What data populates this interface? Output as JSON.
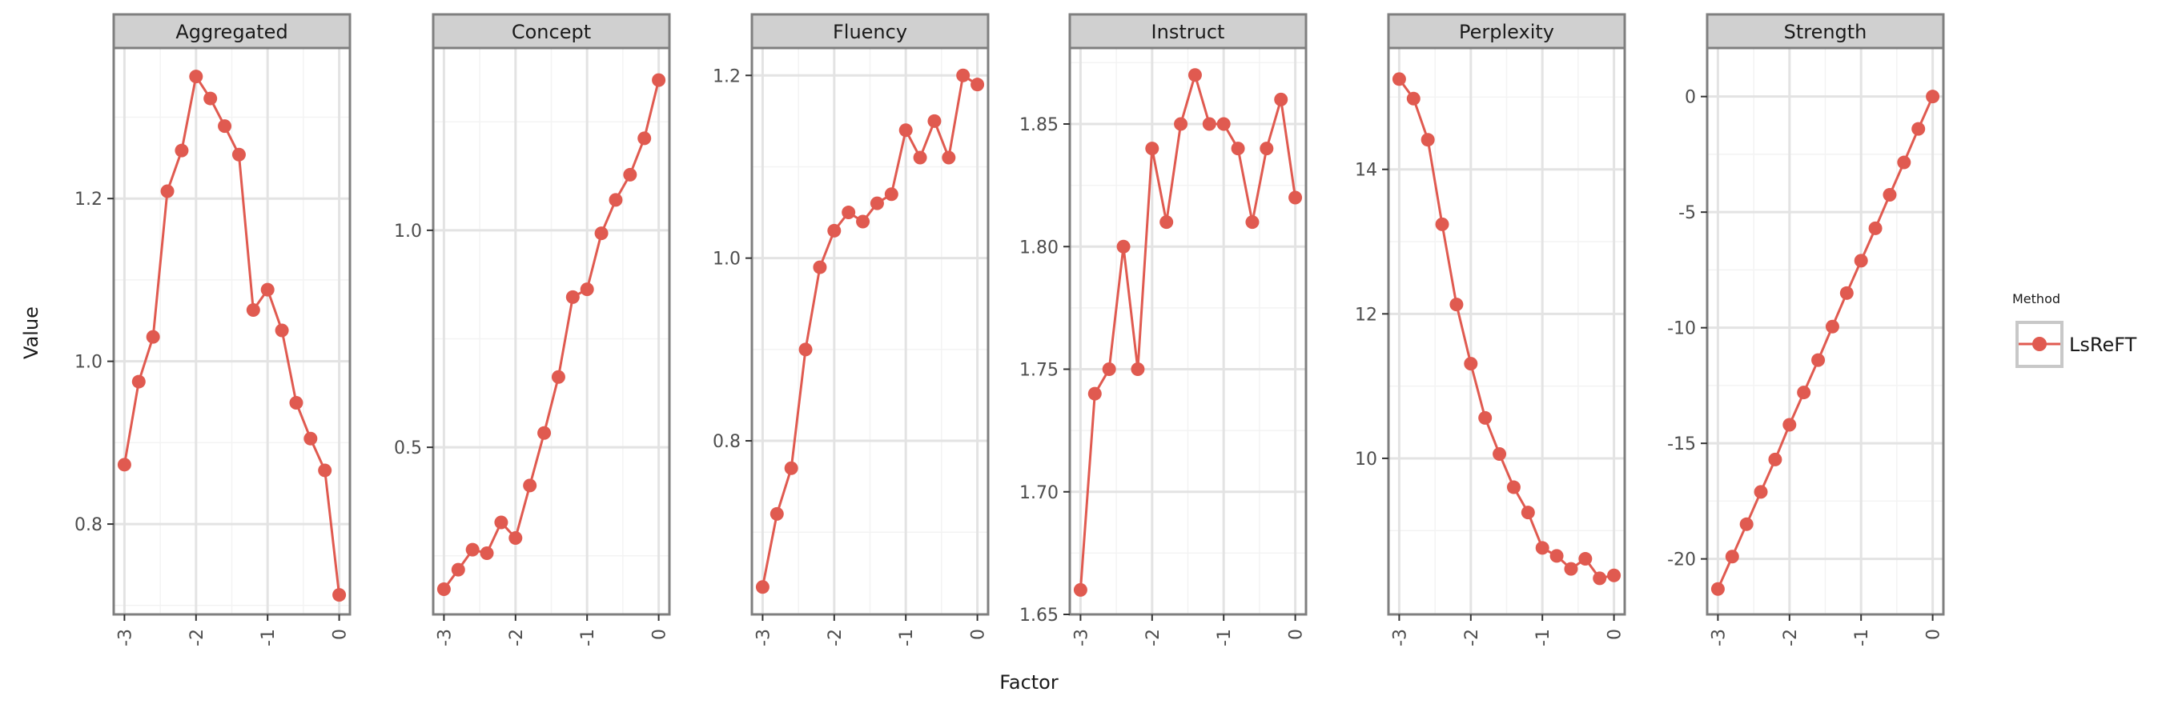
{
  "chart_data": {
    "type": "line",
    "xlabel": "Factor",
    "ylabel": "Value",
    "x_ticks": [
      -3,
      -2,
      -1,
      0
    ],
    "legend": {
      "title": "Method",
      "placement": "right",
      "entries": [
        {
          "label": "LsReFT",
          "color": "#E05A50"
        }
      ]
    },
    "grid": true,
    "colors": {
      "series": "#E05A50",
      "strip_fill": "#D0D0D0",
      "border": "#7F7F7F",
      "grid_major": "#E3E3E3",
      "grid_minor": "#F3F3F3"
    },
    "panels": [
      {
        "title": "Aggregated",
        "xlim": [
          -3.15,
          0.15
        ],
        "ylim": [
          0.689,
          1.385
        ],
        "y_ticks": [
          {
            "v": 0.8,
            "label": "0.8"
          },
          {
            "v": 1.0,
            "label": "1.0"
          },
          {
            "v": 1.2,
            "label": "1.2"
          }
        ],
        "series": [
          {
            "name": "LsReFT",
            "x": [
              -3.0,
              -2.8,
              -2.6,
              -2.4,
              -2.2,
              -2.0,
              -1.8,
              -1.6,
              -1.4,
              -1.2,
              -1.0,
              -0.8,
              -0.6,
              -0.4,
              -0.2,
              0.0
            ],
            "y": [
              0.873,
              0.975,
              1.03,
              1.209,
              1.259,
              1.35,
              1.323,
              1.289,
              1.254,
              1.063,
              1.088,
              1.038,
              0.949,
              0.905,
              0.866,
              0.713
            ]
          }
        ]
      },
      {
        "title": "Concept",
        "xlim": [
          -3.15,
          0.15
        ],
        "ylim": [
          0.115,
          1.42
        ],
        "y_ticks": [
          {
            "v": 0.5,
            "label": "0.5"
          },
          {
            "v": 1.0,
            "label": "1.0"
          }
        ],
        "series": [
          {
            "name": "LsReFT",
            "x": [
              -3.0,
              -2.8,
              -2.6,
              -2.4,
              -2.2,
              -2.0,
              -1.8,
              -1.6,
              -1.4,
              -1.2,
              -1.0,
              -0.8,
              -0.6,
              -0.4,
              -0.2,
              0.0
            ],
            "y": [
              0.173,
              0.218,
              0.264,
              0.256,
              0.327,
              0.291,
              0.412,
              0.533,
              0.662,
              0.846,
              0.864,
              0.993,
              1.07,
              1.128,
              1.212,
              1.346
            ]
          }
        ]
      },
      {
        "title": "Fluency",
        "xlim": [
          -3.15,
          0.15
        ],
        "ylim": [
          0.61,
          1.23
        ],
        "y_ticks": [
          {
            "v": 0.8,
            "label": "0.8"
          },
          {
            "v": 1.0,
            "label": "1.0"
          },
          {
            "v": 1.2,
            "label": "1.2"
          }
        ],
        "series": [
          {
            "name": "LsReFT",
            "x": [
              -3.0,
              -2.8,
              -2.6,
              -2.4,
              -2.2,
              -2.0,
              -1.8,
              -1.6,
              -1.4,
              -1.2,
              -1.0,
              -0.8,
              -0.6,
              -0.4,
              -0.2,
              0.0
            ],
            "y": [
              0.64,
              0.72,
              0.77,
              0.9,
              0.99,
              1.03,
              1.05,
              1.04,
              1.06,
              1.07,
              1.14,
              1.11,
              1.15,
              1.11,
              1.2,
              1.19
            ]
          }
        ]
      },
      {
        "title": "Instruct",
        "xlim": [
          -3.15,
          0.15
        ],
        "ylim": [
          1.65,
          1.881
        ],
        "y_ticks": [
          {
            "v": 1.65,
            "label": "1.65"
          },
          {
            "v": 1.7,
            "label": "1.70"
          },
          {
            "v": 1.75,
            "label": "1.75"
          },
          {
            "v": 1.8,
            "label": "1.80"
          },
          {
            "v": 1.85,
            "label": "1.85"
          }
        ],
        "series": [
          {
            "name": "LsReFT",
            "x": [
              -3.0,
              -2.8,
              -2.6,
              -2.4,
              -2.2,
              -2.0,
              -1.8,
              -1.6,
              -1.4,
              -1.2,
              -1.0,
              -0.8,
              -0.6,
              -0.4,
              -0.2,
              0.0
            ],
            "y": [
              1.66,
              1.74,
              1.75,
              1.8,
              1.75,
              1.84,
              1.81,
              1.85,
              1.87,
              1.85,
              1.85,
              1.84,
              1.81,
              1.84,
              1.86,
              1.82
            ]
          }
        ]
      },
      {
        "title": "Perplexity",
        "xlim": [
          -3.15,
          0.15
        ],
        "ylim": [
          7.84,
          15.68
        ],
        "y_ticks": [
          {
            "v": 10,
            "label": "10"
          },
          {
            "v": 12,
            "label": "12"
          },
          {
            "v": 14,
            "label": "14"
          }
        ],
        "series": [
          {
            "name": "LsReFT",
            "x": [
              -3.0,
              -2.8,
              -2.6,
              -2.4,
              -2.2,
              -2.0,
              -1.8,
              -1.6,
              -1.4,
              -1.2,
              -1.0,
              -0.8,
              -0.6,
              -0.4,
              -0.2,
              0.0
            ],
            "y": [
              15.25,
              14.98,
              14.41,
              13.24,
              12.13,
              11.31,
              10.56,
              10.06,
              9.6,
              9.25,
              8.76,
              8.65,
              8.47,
              8.61,
              8.34,
              8.38
            ]
          }
        ]
      },
      {
        "title": "Strength",
        "xlim": [
          -3.15,
          0.15
        ],
        "ylim": [
          -22.4,
          2.1
        ],
        "y_ticks": [
          {
            "v": -20,
            "label": "-20"
          },
          {
            "v": -15,
            "label": "-15"
          },
          {
            "v": -10,
            "label": "-10"
          },
          {
            "v": -5,
            "label": "-5"
          },
          {
            "v": 0,
            "label": "0"
          }
        ],
        "series": [
          {
            "name": "LsReFT",
            "x": [
              -3.0,
              -2.8,
              -2.6,
              -2.4,
              -2.2,
              -2.0,
              -1.8,
              -1.6,
              -1.4,
              -1.2,
              -1.0,
              -0.8,
              -0.6,
              -0.4,
              -0.2,
              0.0
            ],
            "y": [
              -21.3,
              -19.9,
              -18.5,
              -17.1,
              -15.7,
              -14.2,
              -12.8,
              -11.4,
              -9.95,
              -8.5,
              -7.1,
              -5.7,
              -4.25,
              -2.85,
              -1.4,
              0.0
            ]
          }
        ]
      }
    ]
  }
}
